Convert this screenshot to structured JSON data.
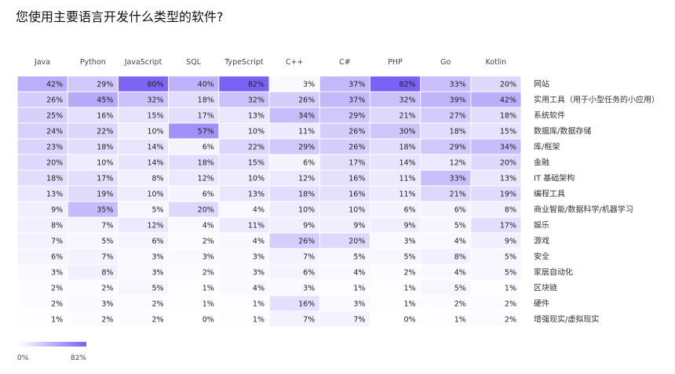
{
  "title": "您使用主要语言开发什么类型的软件?",
  "chart_data": {
    "type": "heatmap",
    "title": "您使用主要语言开发什么类型的软件?",
    "columns": [
      "Java",
      "Python",
      "JavaScript",
      "SQL",
      "TypeScript",
      "C++",
      "C#",
      "PHP",
      "Go",
      "Kotlin"
    ],
    "rows": [
      "网站",
      "实用工具（用于小型任务的小应用）",
      "系统软件",
      "数据库/数据存储",
      "库/框架",
      "金融",
      "IT 基础架构",
      "编程工具",
      "商业智能/数据科学/机器学习",
      "娱乐",
      "游戏",
      "安全",
      "家居自动化",
      "区块链",
      "硬件",
      "增强现实/虚拟现实"
    ],
    "values": [
      [
        42,
        29,
        80,
        40,
        82,
        3,
        37,
        82,
        33,
        20
      ],
      [
        26,
        45,
        32,
        18,
        32,
        26,
        37,
        32,
        39,
        42
      ],
      [
        25,
        16,
        15,
        17,
        13,
        34,
        29,
        21,
        27,
        18
      ],
      [
        24,
        22,
        10,
        57,
        10,
        11,
        26,
        30,
        18,
        15
      ],
      [
        23,
        18,
        14,
        6,
        22,
        29,
        26,
        18,
        29,
        34
      ],
      [
        20,
        10,
        14,
        18,
        15,
        6,
        17,
        14,
        12,
        20
      ],
      [
        18,
        17,
        8,
        12,
        10,
        12,
        16,
        11,
        33,
        13
      ],
      [
        13,
        19,
        10,
        6,
        13,
        18,
        16,
        11,
        21,
        19
      ],
      [
        9,
        35,
        5,
        20,
        4,
        10,
        10,
        6,
        6,
        8
      ],
      [
        8,
        7,
        12,
        4,
        11,
        9,
        9,
        9,
        5,
        17
      ],
      [
        7,
        5,
        6,
        2,
        4,
        26,
        20,
        3,
        4,
        9
      ],
      [
        6,
        7,
        3,
        3,
        3,
        7,
        5,
        5,
        8,
        5
      ],
      [
        3,
        8,
        3,
        2,
        3,
        6,
        4,
        2,
        4,
        5
      ],
      [
        2,
        2,
        5,
        1,
        4,
        3,
        1,
        1,
        5,
        1
      ],
      [
        2,
        3,
        2,
        1,
        1,
        16,
        3,
        1,
        2,
        2
      ],
      [
        1,
        2,
        2,
        0,
        1,
        7,
        7,
        0,
        1,
        2
      ]
    ],
    "value_suffix": "%",
    "color_min": "#ffffff",
    "color_max": "#7b61f5",
    "legend": {
      "min_label": "0%",
      "max_label": "82%",
      "min": 0,
      "max": 82
    }
  }
}
